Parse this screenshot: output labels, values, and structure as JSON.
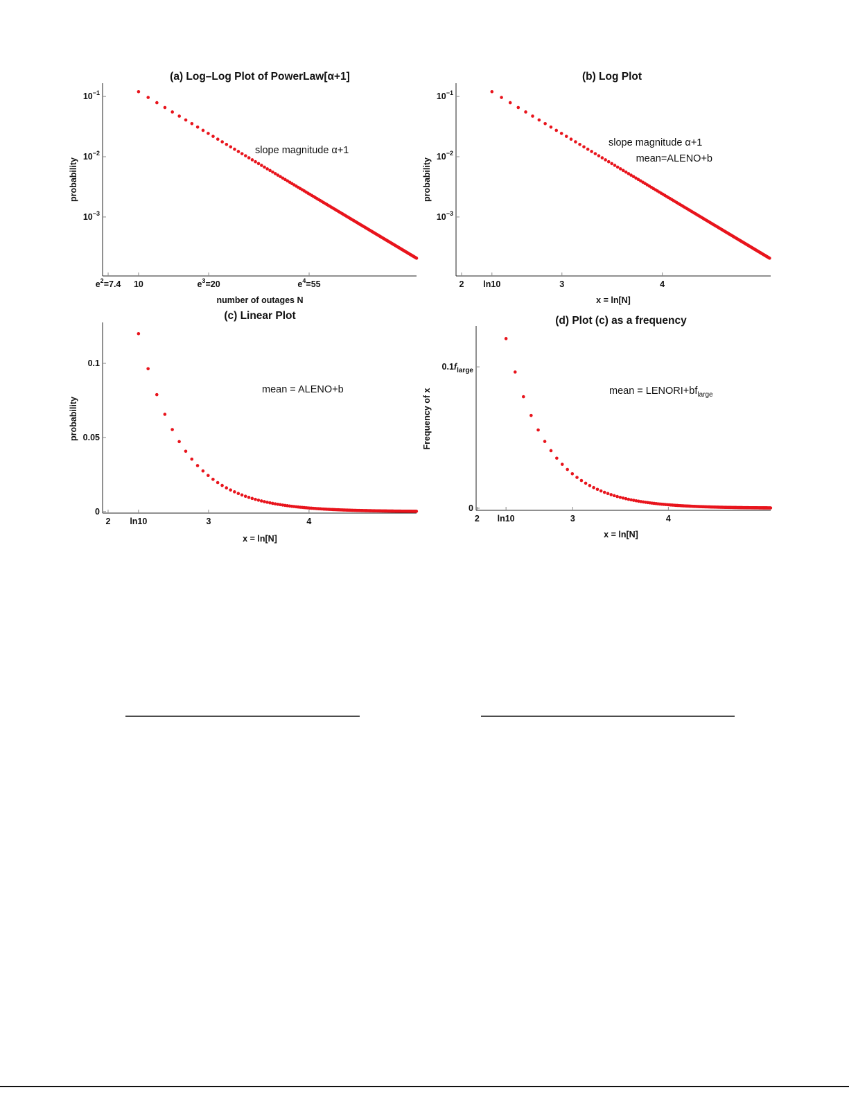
{
  "figure": {
    "marker_color": "#e8141c",
    "axis_color": "#222222"
  },
  "chart_data": [
    {
      "panel": "a",
      "type": "scatter",
      "title": "(a) Log–Log Plot of PowerLaw[α+1]",
      "xlabel": "number of outages N",
      "ylabel": "probability",
      "x_variable": "N",
      "x_scale": "log",
      "y_scale": "log",
      "xlim": [
        6.99,
        159
      ],
      "ylim": [
        0.000105,
        0.166
      ],
      "x_ticks": [
        {
          "value": 7.389,
          "label": {
            "base": "e",
            "sup": "2",
            "rest": "=7.4"
          }
        },
        {
          "value": 10,
          "label": {
            "base": "10"
          }
        },
        {
          "value": 20.09,
          "label": {
            "base": "e",
            "sup": "3",
            "rest": "=20"
          }
        },
        {
          "value": 54.6,
          "label": {
            "base": "e",
            "sup": "4",
            "rest": "=55"
          }
        }
      ],
      "y_ticks": [
        {
          "value": 0.1,
          "label": {
            "base": "10",
            "sup": "−1"
          }
        },
        {
          "value": 0.01,
          "label": {
            "base": "10",
            "sup": "−2"
          }
        },
        {
          "value": 0.001,
          "label": {
            "base": "10",
            "sup": "−3"
          }
        }
      ],
      "annotations": [
        {
          "text": "slope magnitude α+1"
        }
      ],
      "data": {
        "N_first": 10,
        "N_last": 159,
        "N_step": 1,
        "probability_at_N_first": 0.12,
        "power_law_exponent": 2.3
      }
    },
    {
      "panel": "b",
      "type": "scatter",
      "title": "(b) Log Plot",
      "xlabel": "x = ln[N]",
      "ylabel": "probability",
      "x_variable": "ln N",
      "x_scale": "linear",
      "y_scale": "log",
      "xlim": [
        1.945,
        5.08
      ],
      "ylim": [
        0.000105,
        0.166
      ],
      "x_ticks": [
        {
          "value": 2,
          "label": {
            "base": "2"
          }
        },
        {
          "value": 2.3026,
          "label": {
            "base": "ln10"
          }
        },
        {
          "value": 3,
          "label": {
            "base": "3"
          }
        },
        {
          "value": 4,
          "label": {
            "base": "4"
          }
        }
      ],
      "y_ticks": [
        {
          "value": 0.1,
          "label": {
            "base": "10",
            "sup": "−1"
          }
        },
        {
          "value": 0.01,
          "label": {
            "base": "10",
            "sup": "−2"
          }
        },
        {
          "value": 0.001,
          "label": {
            "base": "10",
            "sup": "−3"
          }
        }
      ],
      "annotations": [
        {
          "text": "slope magnitude α+1"
        },
        {
          "text": "mean=ALENO+b"
        }
      ],
      "data": {
        "N_first": 10,
        "N_last": 159,
        "N_step": 1,
        "probability_at_N_first": 0.12,
        "power_law_exponent": 2.3
      }
    },
    {
      "panel": "c",
      "type": "scatter",
      "title": "(c) Linear Plot",
      "xlabel": "x = ln[N]",
      "ylabel": "probability",
      "x_variable": "ln N",
      "x_scale": "linear",
      "y_scale": "linear",
      "xlim": [
        1.945,
        5.07
      ],
      "ylim": [
        -0.001,
        0.1276
      ],
      "x_ticks": [
        {
          "value": 2,
          "label": {
            "base": "2"
          }
        },
        {
          "value": 2.3026,
          "label": {
            "base": "ln10"
          }
        },
        {
          "value": 3,
          "label": {
            "base": "3"
          }
        },
        {
          "value": 4,
          "label": {
            "base": "4"
          }
        }
      ],
      "y_ticks": [
        {
          "value": 0,
          "label": {
            "base": "0"
          }
        },
        {
          "value": 0.05,
          "label": {
            "base": "0.05"
          }
        },
        {
          "value": 0.1,
          "label": {
            "base": "0.1"
          }
        }
      ],
      "annotations": [
        {
          "text": "mean = ALENO+b"
        }
      ],
      "data": {
        "N_first": 10,
        "N_last": 159,
        "N_step": 1,
        "probability_at_N_first": 0.12,
        "power_law_exponent": 2.3
      }
    },
    {
      "panel": "d",
      "type": "scatter",
      "title": "(d) Plot (c) as a frequency",
      "xlabel": "x = ln[N]",
      "ylabel": "Frequency of x",
      "x_variable": "ln N",
      "x_scale": "linear",
      "y_scale": "linear",
      "xlim": [
        1.99,
        5.07
      ],
      "ylim": [
        -0.0015,
        0.129
      ],
      "x_ticks": [
        {
          "value": 2,
          "label": {
            "base": "2"
          }
        },
        {
          "value": 2.3026,
          "label": {
            "base": "ln10"
          }
        },
        {
          "value": 3,
          "label": {
            "base": "3"
          }
        },
        {
          "value": 4,
          "label": {
            "base": "4"
          }
        }
      ],
      "y_ticks": [
        {
          "value": 0,
          "label": {
            "base": "0"
          }
        },
        {
          "value": 0.1,
          "label": {
            "base": "0.1",
            "ital": "f",
            "sub": "large"
          }
        }
      ],
      "annotations": [
        {
          "text": "mean = LENORI+bf",
          "sub": "large"
        }
      ],
      "data": {
        "N_first": 10,
        "N_last": 159,
        "N_step": 1,
        "probability_at_N_first": 0.12,
        "power_law_exponent": 2.3
      }
    }
  ]
}
